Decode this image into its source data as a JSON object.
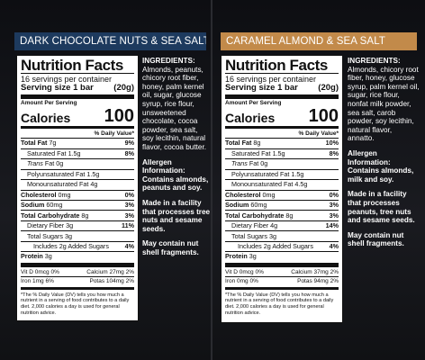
{
  "panels": [
    {
      "banner": "DARK CHOCOLATE NUTS & SEA SALT",
      "banner_color": "#1d3a5e",
      "label": {
        "title": "Nutrition Facts",
        "servings": "16 servings per container",
        "serving_size_label": "Serving size",
        "serving_size_value": "1 bar",
        "serving_size_grams": "(20g)",
        "amount_per_serving": "Amount Per Serving",
        "calories_label": "Calories",
        "calories_value": "100",
        "daily_value_header": "% Daily Value*",
        "rows": [
          {
            "name": "Total Fat",
            "amount": "7g",
            "dv": "9%",
            "bold": true
          },
          {
            "name": "Saturated Fat",
            "amount": "1.5g",
            "dv": "8%"
          },
          {
            "name": "Trans",
            "amount": "Fat 0g",
            "dv": ""
          },
          {
            "name": "Polyunsaturated Fat",
            "amount": "1.5g",
            "dv": ""
          },
          {
            "name": "Monounsaturated Fat",
            "amount": "4g",
            "dv": ""
          },
          {
            "name": "Cholesterol",
            "amount": "0mg",
            "dv": "0%",
            "bold": true
          },
          {
            "name": "Sodium",
            "amount": "60mg",
            "dv": "3%",
            "bold": true
          },
          {
            "name": "Total Carbohydrate",
            "amount": "8g",
            "dv": "3%",
            "bold": true
          },
          {
            "name": "Dietary Fiber",
            "amount": "3g",
            "dv": "11%"
          },
          {
            "name": "Total Sugars",
            "amount": "3g",
            "dv": ""
          },
          {
            "name": "Includes 2g Added Sugars",
            "amount": "",
            "dv": "4%"
          },
          {
            "name": "Protein",
            "amount": "3g",
            "dv": "",
            "bold": true
          }
        ],
        "vitamins": [
          {
            "left": "Vit D 0mcg 0%",
            "right": "Calcium 27mg 2%"
          },
          {
            "left": "Iron 1mg 6%",
            "right": "Potas 104mg 2%"
          }
        ],
        "footnote": "*The % Daily Value (DV) tells you how much a nutrient in a serving of food contributes to a daily diet. 2,000 calories a day is used for general nutrition advice."
      },
      "ingredients_header": "INGREDIENTS:",
      "ingredients": "Almonds, peanuts, chicory root fiber, honey, palm kernel oil, sugar, glucose syrup, rice flour, unsweetened chocolate, cocoa powder, sea salt, soy lecithin, natural flavor, cocoa butter.",
      "allergen_header": "Allergen Information:",
      "allergen": "Contains almonds, peanuts and soy.",
      "facility": "Made in a facility that processes tree nuts and sesame seeds.",
      "shell": "May contain nut shell fragments."
    },
    {
      "banner": "CARAMEL ALMOND & SEA SALT",
      "banner_color": "#c28a4a",
      "label": {
        "title": "Nutrition Facts",
        "servings": "16 servings per container",
        "serving_size_label": "Serving size",
        "serving_size_value": "1 bar",
        "serving_size_grams": "(20g)",
        "amount_per_serving": "Amount Per Serving",
        "calories_label": "Calories",
        "calories_value": "100",
        "daily_value_header": "% Daily Value*",
        "rows": [
          {
            "name": "Total Fat",
            "amount": "8g",
            "dv": "10%",
            "bold": true
          },
          {
            "name": "Saturated Fat",
            "amount": "1.5g",
            "dv": "8%"
          },
          {
            "name": "Trans",
            "amount": "Fat 0g",
            "dv": ""
          },
          {
            "name": "Polyunsaturated Fat",
            "amount": "1.5g",
            "dv": ""
          },
          {
            "name": "Monounsaturated Fat",
            "amount": "4.5g",
            "dv": ""
          },
          {
            "name": "Cholesterol",
            "amount": "0mg",
            "dv": "0%",
            "bold": true
          },
          {
            "name": "Sodium",
            "amount": "60mg",
            "dv": "3%",
            "bold": true
          },
          {
            "name": "Total Carbohydrate",
            "amount": "8g",
            "dv": "3%",
            "bold": true
          },
          {
            "name": "Dietary Fiber",
            "amount": "4g",
            "dv": "14%"
          },
          {
            "name": "Total Sugars",
            "amount": "3g",
            "dv": ""
          },
          {
            "name": "Includes 2g Added Sugars",
            "amount": "",
            "dv": "4%"
          },
          {
            "name": "Protein",
            "amount": "3g",
            "dv": "",
            "bold": true
          }
        ],
        "vitamins": [
          {
            "left": "Vit D 0mcg 0%",
            "right": "Calcium 37mg 2%"
          },
          {
            "left": "Iron 0mg 0%",
            "right": "Potas 94mg 2%"
          }
        ],
        "footnote": "*The % Daily Value (DV) tells you how much a nutrient in a serving of food contributes to a daily diet. 2,000 calories a day is used for general nutrition advice."
      },
      "ingredients_header": "INGREDIENTS:",
      "ingredients": "Almonds, chicory root fiber, honey, glucose syrup, palm kernel oil, sugar, rice flour, nonfat milk powder, sea salt, carob powder, soy lecithin, natural flavor, annatto.",
      "allergen_header": "Allergen Information:",
      "allergen": "Contains almonds, milk and soy.",
      "facility": "Made in a facility that processes peanuts, tree nuts and sesame seeds.",
      "shell": "May contain nut shell fragments."
    }
  ]
}
